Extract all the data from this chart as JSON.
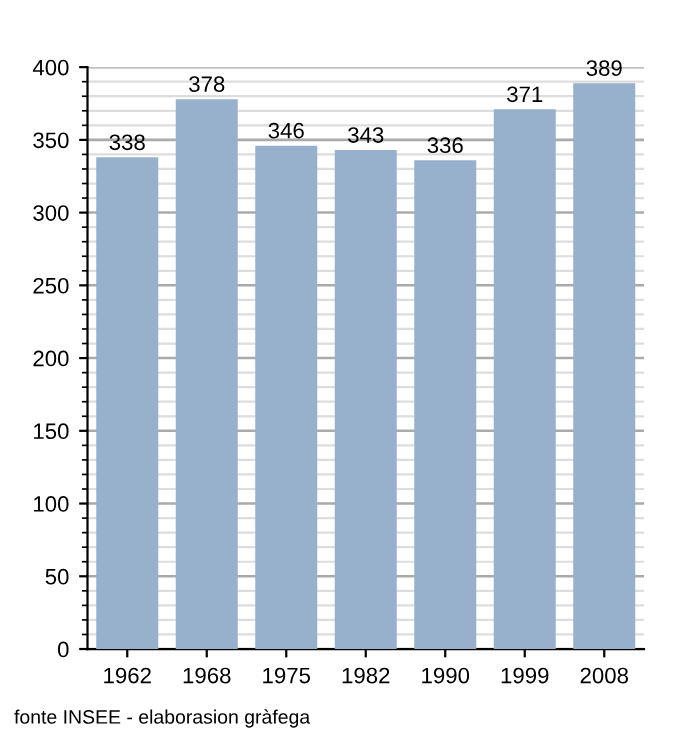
{
  "chart_data": {
    "type": "bar",
    "categories": [
      "1962",
      "1968",
      "1975",
      "1982",
      "1990",
      "1999",
      "2008"
    ],
    "values": [
      338,
      378,
      346,
      343,
      336,
      371,
      389
    ],
    "color": "#97b0cb",
    "ylim": [
      0,
      400
    ],
    "yticks": [
      0,
      50,
      100,
      150,
      200,
      250,
      300,
      350,
      400
    ],
    "grid": "y",
    "data_labels": true,
    "legend": false,
    "annotations": [
      "fonte INSEE - elaborasion gràfega"
    ]
  }
}
